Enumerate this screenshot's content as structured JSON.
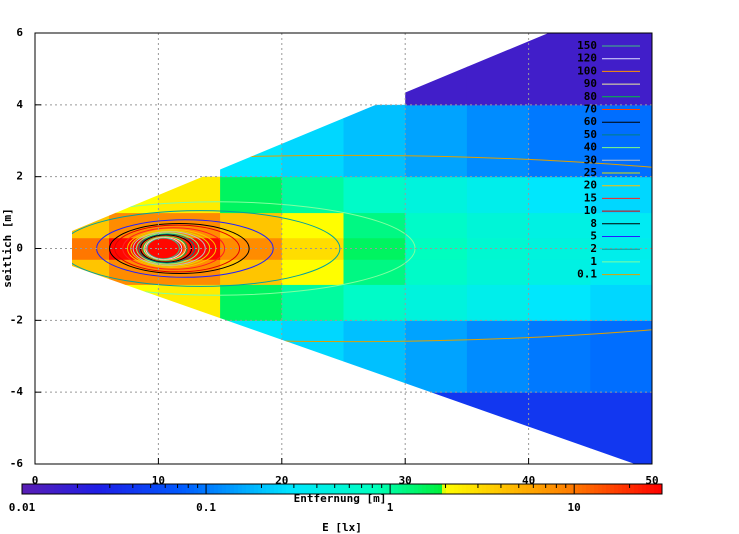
{
  "chart_data": {
    "type": "heatmap",
    "xlabel": "Entfernung [m]",
    "ylabel": "seitlich [m]",
    "zlabel": "E [lx]",
    "xlim": [
      0,
      50
    ],
    "xticks": [
      0,
      10,
      20,
      30,
      40,
      50
    ],
    "ylim": [
      -6,
      6
    ],
    "yticks": [
      -6,
      -4,
      -2,
      0,
      2,
      4,
      6
    ],
    "zlim": [
      0.01,
      30
    ],
    "zticks": [
      0.01,
      0.1,
      1,
      10
    ],
    "zlog": true,
    "grid": true,
    "x_edges": [
      3,
      6,
      10,
      15,
      20,
      25,
      30,
      35,
      40,
      45,
      50
    ],
    "y_edges": [
      -6,
      -4,
      -2,
      -1,
      -0.3,
      0.3,
      1,
      2,
      4,
      6
    ],
    "z": [
      [
        null,
        null,
        null,
        null,
        null,
        null,
        0.04,
        0.04,
        0.04,
        0.04
      ],
      [
        null,
        null,
        null,
        0.3,
        0.25,
        0.2,
        0.15,
        0.12,
        0.1,
        0.09
      ],
      [
        null,
        2,
        2.5,
        1.5,
        1,
        0.7,
        0.5,
        0.4,
        0.3,
        0.25
      ],
      [
        4,
        8,
        8,
        4,
        2,
        1.2,
        0.7,
        0.55,
        0.45,
        0.35
      ],
      [
        10,
        28,
        28,
        8,
        3,
        1.5,
        0.8,
        0.6,
        0.5,
        0.4
      ],
      [
        4,
        8,
        8,
        4,
        2,
        1.2,
        0.7,
        0.55,
        0.45,
        0.35
      ],
      [
        null,
        2,
        2.5,
        1.5,
        1,
        0.7,
        0.5,
        0.4,
        0.3,
        0.25
      ],
      [
        null,
        null,
        null,
        0.3,
        0.25,
        0.2,
        0.15,
        0.12,
        0.1,
        0.09
      ],
      [
        null,
        null,
        null,
        null,
        null,
        null,
        0.015,
        0.015,
        0.015,
        0.015
      ]
    ],
    "contours": [
      {
        "level": 150,
        "color": "#40c080"
      },
      {
        "level": 120,
        "color": "#e0e0ff"
      },
      {
        "level": 100,
        "color": "#ff9000"
      },
      {
        "level": 90,
        "color": "#f0f0a0"
      },
      {
        "level": 80,
        "color": "#00c040"
      },
      {
        "level": 70,
        "color": "#ff4000"
      },
      {
        "level": 60,
        "color": "#000000"
      },
      {
        "level": 50,
        "color": "#008080"
      },
      {
        "level": 40,
        "color": "#80ff80"
      },
      {
        "level": 30,
        "color": "#c0c0c0"
      },
      {
        "level": 25,
        "color": "#e0e000"
      },
      {
        "level": 20,
        "color": "#ffc000"
      },
      {
        "level": 15,
        "color": "#ff2020"
      },
      {
        "level": 10,
        "color": "#e00000"
      },
      {
        "level": 8,
        "color": "#000000"
      },
      {
        "level": 5,
        "color": "#2020ff"
      },
      {
        "level": 2,
        "color": "#00a0a0"
      },
      {
        "level": 1,
        "color": "#80ffa0"
      },
      {
        "level": 0.1,
        "color": "#e0a000"
      }
    ]
  }
}
